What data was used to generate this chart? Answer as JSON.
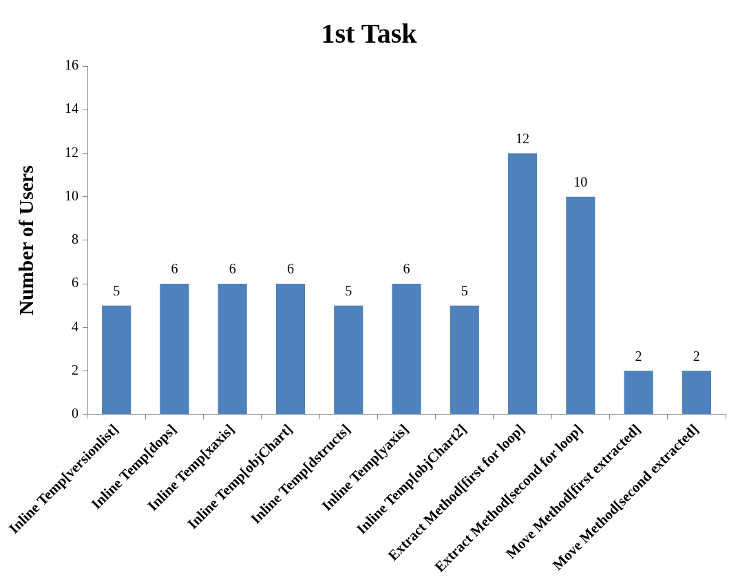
{
  "chart_data": {
    "type": "bar",
    "title": "1st Task",
    "ylabel": "Number of Users",
    "categories": [
      "Inline Temp[versionlist]",
      "Inline Temp[dops]",
      "Inline Temp[xaxis]",
      "Inline Temp[objChart]",
      "Inline Temp[dstructs]",
      "Inline Temp[yaxis]",
      "Inline Temp[objChart2]",
      "Extract Method[first for loop]",
      "Extract Method[second for loop]",
      "Move Method[first extracted]",
      "Move Method[second extracted]"
    ],
    "values": [
      5,
      6,
      6,
      6,
      5,
      6,
      5,
      12,
      10,
      2,
      2
    ],
    "color": "#4f81bd",
    "ylim": [
      0,
      16
    ],
    "yticks": [
      0,
      2,
      4,
      6,
      8,
      10,
      12,
      14,
      16
    ],
    "data_labels": true,
    "grid": false,
    "legend": false
  }
}
